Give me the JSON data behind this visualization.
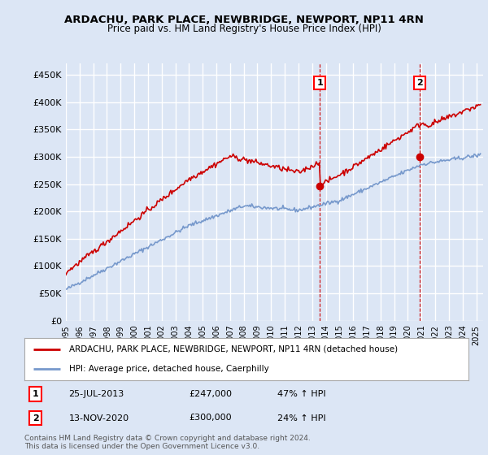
{
  "title": "ARDACHU, PARK PLACE, NEWBRIDGE, NEWPORT, NP11 4RN",
  "subtitle": "Price paid vs. HM Land Registry's House Price Index (HPI)",
  "ylabel_ticks": [
    "£0",
    "£50K",
    "£100K",
    "£150K",
    "£200K",
    "£250K",
    "£300K",
    "£350K",
    "£400K",
    "£450K"
  ],
  "ytick_values": [
    0,
    50000,
    100000,
    150000,
    200000,
    250000,
    300000,
    350000,
    400000,
    450000
  ],
  "ylim": [
    0,
    470000
  ],
  "xlim_start": 1995.0,
  "xlim_end": 2025.5,
  "background_color": "#dce6f5",
  "grid_color": "#ffffff",
  "sale1": {
    "date_num": 2013.56,
    "price": 247000,
    "label": "1",
    "date_str": "25-JUL-2013",
    "pct": "47% ↑ HPI"
  },
  "sale2": {
    "date_num": 2020.87,
    "price": 300000,
    "label": "2",
    "date_str": "13-NOV-2020",
    "pct": "24% ↑ HPI"
  },
  "legend_house_label": "ARDACHU, PARK PLACE, NEWBRIDGE, NEWPORT, NP11 4RN (detached house)",
  "legend_hpi_label": "HPI: Average price, detached house, Caerphilly",
  "footer": "Contains HM Land Registry data © Crown copyright and database right 2024.\nThis data is licensed under the Open Government Licence v3.0.",
  "house_color": "#cc0000",
  "hpi_color": "#7799cc",
  "vline_color": "#cc0000"
}
